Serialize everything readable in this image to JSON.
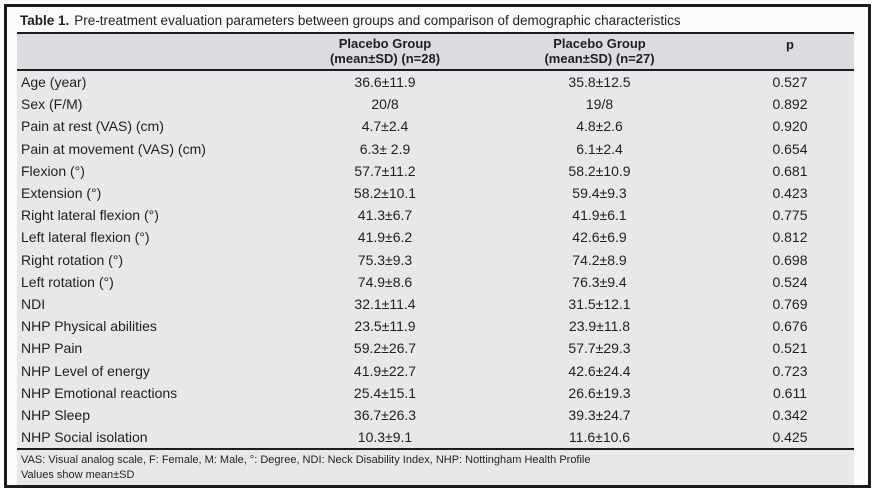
{
  "table": {
    "title_label": "Table 1.",
    "title_text": "Pre-treatment evaluation parameters between groups and comparison of demographic characteristics",
    "columns": {
      "group1_line1": "Placebo Group",
      "group1_line2": "(mean±SD) (n=28)",
      "group2_line1": "Placebo Group",
      "group2_line2": "(mean±SD) (n=27)",
      "p_label": "p"
    },
    "rows": [
      {
        "label": "Age (year)",
        "group1": "36.6±11.9",
        "group2": "35.8±12.5",
        "p": "0.527"
      },
      {
        "label": "Sex (F/M)",
        "group1": "20/8",
        "group2": "19/8",
        "p": "0.892"
      },
      {
        "label": "Pain at rest (VAS) (cm)",
        "group1": "4.7±2.4",
        "group2": "4.8±2.6",
        "p": "0.920"
      },
      {
        "label": "Pain at movement (VAS) (cm)",
        "group1": "6.3± 2.9",
        "group2": "6.1±2.4",
        "p": "0.654"
      },
      {
        "label": "Flexion (°)",
        "group1": "57.7±11.2",
        "group2": "58.2±10.9",
        "p": "0.681"
      },
      {
        "label": "Extension (°)",
        "group1": "58.2±10.1",
        "group2": "59.4±9.3",
        "p": "0.423"
      },
      {
        "label": "Right lateral flexion (°)",
        "group1": "41.3±6.7",
        "group2": "41.9±6.1",
        "p": "0.775"
      },
      {
        "label": "Left lateral flexion (°)",
        "group1": "41.9±6.2",
        "group2": "42.6±6.9",
        "p": "0.812"
      },
      {
        "label": "Right rotation (°)",
        "group1": "75.3±9.3",
        "group2": "74.2±8.9",
        "p": "0.698"
      },
      {
        "label": "Left rotation (°)",
        "group1": "74.9±8.6",
        "group2": "76.3±9.4",
        "p": "0.524"
      },
      {
        "label": "NDI",
        "group1": "32.1±11.4",
        "group2": "31.5±12.1",
        "p": "0.769"
      },
      {
        "label": "NHP Physical abilities",
        "group1": "23.5±11.9",
        "group2": "23.9±11.8",
        "p": "0.676"
      },
      {
        "label": "NHP Pain",
        "group1": "59.2±26.7",
        "group2": "57.7±29.3",
        "p": "0.521"
      },
      {
        "label": "NHP Level of energy",
        "group1": "41.9±22.7",
        "group2": "42.6±24.4",
        "p": "0.723"
      },
      {
        "label": "NHP Emotional reactions",
        "group1": "25.4±15.1",
        "group2": "26.6±19.3",
        "p": "0.611"
      },
      {
        "label": "NHP Sleep",
        "group1": "36.7±26.3",
        "group2": "39.3±24.7",
        "p": "0.342"
      },
      {
        "label": "NHP Social isolation",
        "group1": "10.3±9.1",
        "group2": "11.6±10.6",
        "p": "0.425"
      }
    ],
    "footnotes": [
      "VAS: Visual analog scale, F: Female, M: Male, °: Degree, NDI: Neck Disability Index, NHP: Nottingham Health Profile",
      "Values show mean±SD"
    ]
  },
  "colors": {
    "border": "#1c1c1c",
    "title_background": "#fcfcfd",
    "header_background": "#dcdce0",
    "body_background": "#e8e8eb",
    "text": "#1f1f1f"
  }
}
